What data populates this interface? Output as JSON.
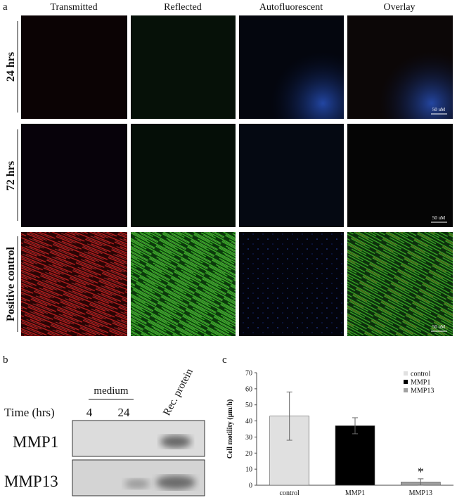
{
  "panels": {
    "a": {
      "label": "a",
      "columns": [
        "Transmitted",
        "Reflected",
        "Autofluorescent",
        "Overlay"
      ],
      "rows": [
        "24 hrs",
        "72 hrs",
        "Positive control"
      ],
      "scale_bar": "50 uM"
    },
    "b": {
      "label": "b",
      "medium": "medium",
      "time_label": "Time (hrs)",
      "times": [
        "4",
        "24"
      ],
      "rec_protein": "Rec. protein",
      "blots": [
        "MMP1",
        "MMP13"
      ]
    },
    "c": {
      "label": "c"
    }
  },
  "chart_data": {
    "type": "bar",
    "y_label": "Cell motility (μm/h)",
    "categories": [
      "control",
      "MMP1",
      "MMP13"
    ],
    "values": [
      43,
      37,
      2
    ],
    "errors": [
      15,
      5,
      2
    ],
    "colors": [
      "#e0e0e0",
      "#000000",
      "#a0a0a0"
    ],
    "legend_labels": [
      "control",
      "MMP1",
      "MMP13"
    ],
    "annotations": [
      {
        "category": 2,
        "text": "*"
      }
    ],
    "ylim": [
      0,
      70
    ],
    "yticks": [
      0,
      10,
      20,
      30,
      40,
      50,
      60,
      70
    ]
  }
}
